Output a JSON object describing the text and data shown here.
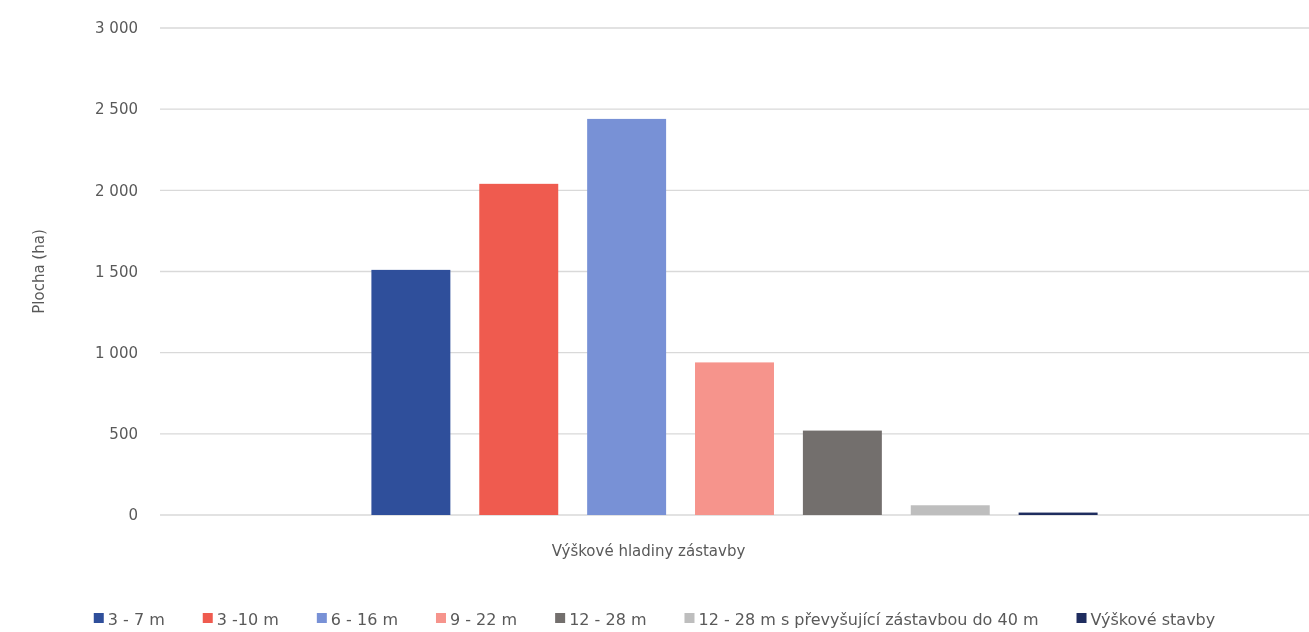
{
  "chart_data": {
    "type": "bar",
    "xlabel": "Výškové hladiny zástavby",
    "ylabel": "Plocha (ha)",
    "categories": [
      null
    ],
    "series": [
      {
        "name": "3 - 7 m",
        "color": "#2f4f9b",
        "values": [
          1510
        ]
      },
      {
        "name": "3 -10 m",
        "color": "#ef5b4f",
        "values": [
          2040
        ]
      },
      {
        "name": "6 - 16 m",
        "color": "#7891d6",
        "values": [
          2440
        ]
      },
      {
        "name": "9 - 22 m",
        "color": "#f6948c",
        "values": [
          940
        ]
      },
      {
        "name": "12 - 28 m",
        "color": "#736f6d",
        "values": [
          520
        ]
      },
      {
        "name": "12 - 28 m s převyšující zástavbou do 40 m",
        "color": "#bebebe",
        "values": [
          60
        ]
      },
      {
        "name": "Výškové stavby",
        "color": "#1f2d5f",
        "values": [
          15
        ]
      }
    ],
    "ylim": [
      0,
      3000
    ],
    "yticks": [
      0,
      500,
      {
        "value": 1000,
        "label": "1 000"
      },
      {
        "value": 1500,
        "label": "1 500"
      },
      {
        "value": 2000,
        "label": "2 000"
      },
      {
        "value": 2500,
        "label": "2 500"
      },
      {
        "value": 3000,
        "label": "3 000"
      }
    ],
    "grid": "y",
    "legend": "bottom"
  }
}
